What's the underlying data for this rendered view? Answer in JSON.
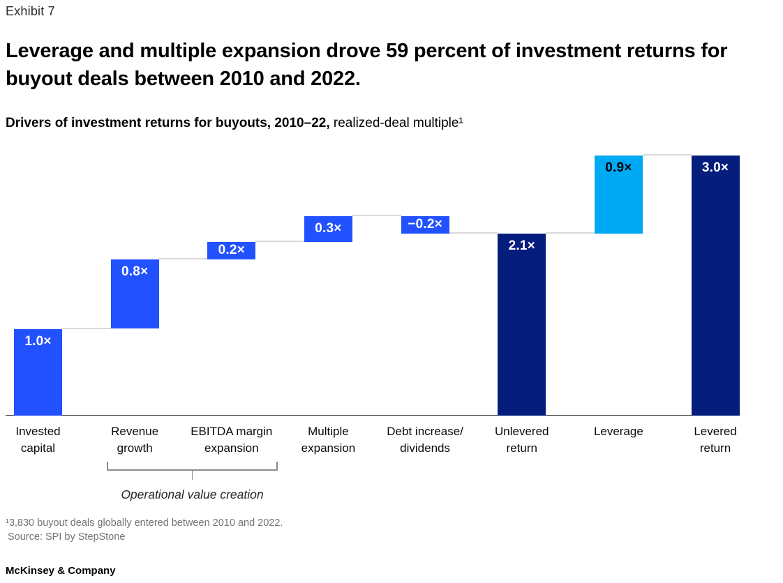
{
  "exhibit_label": "Exhibit 7",
  "title": "Leverage and multiple expansion drove 59 percent of investment returns for buyout deals between 2010 and 2022.",
  "subtitle": {
    "bold": "Drivers of investment returns for buyouts, 2010–22,",
    "regular": " realized-deal multiple¹"
  },
  "chart_data": {
    "type": "bar",
    "subtype": "waterfall",
    "title": "Drivers of investment returns for buyouts, 2010–22, realized-deal multiple",
    "xlabel": "",
    "ylabel": "realized-deal multiple (×)",
    "ylim": [
      0,
      3.1
    ],
    "gridlines": false,
    "legend": "none",
    "categories": [
      "Invested capital",
      "Revenue growth",
      "EBITDA margin expansion",
      "Multiple expansion",
      "Debt increase/dividends",
      "Unlevered return",
      "Leverage",
      "Levered return"
    ],
    "values": [
      1.0,
      0.8,
      0.2,
      0.3,
      -0.2,
      2.1,
      0.9,
      3.0
    ],
    "bars": [
      {
        "category": "Invested capital",
        "label_lines": [
          "Invested",
          "capital"
        ],
        "value": 1.0,
        "display": "1.0×",
        "kind": "base",
        "color_key": "blue"
      },
      {
        "category": "Revenue growth",
        "label_lines": [
          "Revenue",
          "growth"
        ],
        "value": 0.8,
        "display": "0.8×",
        "kind": "increase",
        "color_key": "blue"
      },
      {
        "category": "EBITDA margin expansion",
        "label_lines": [
          "EBITDA margin",
          "expansion"
        ],
        "value": 0.2,
        "display": "0.2×",
        "kind": "increase",
        "color_key": "blue"
      },
      {
        "category": "Multiple expansion",
        "label_lines": [
          "Multiple",
          "expansion"
        ],
        "value": 0.3,
        "display": "0.3×",
        "kind": "increase",
        "color_key": "blue"
      },
      {
        "category": "Debt increase/dividends",
        "label_lines": [
          "Debt increase/",
          "dividends"
        ],
        "value": -0.2,
        "display": "−0.2×",
        "kind": "decrease",
        "color_key": "blue"
      },
      {
        "category": "Unlevered return",
        "label_lines": [
          "Unlevered",
          "return"
        ],
        "value": 2.1,
        "display": "2.1×",
        "kind": "subtotal",
        "color_key": "navy"
      },
      {
        "category": "Leverage",
        "label_lines": [
          "Leverage"
        ],
        "value": 0.9,
        "display": "0.9×",
        "kind": "increase",
        "color_key": "cyan"
      },
      {
        "category": "Levered return",
        "label_lines": [
          "Levered",
          "return"
        ],
        "value": 3.0,
        "display": "3.0×",
        "kind": "total",
        "color_key": "navy"
      }
    ],
    "bracket": {
      "label": "Operational value creation",
      "from_category": "Revenue growth",
      "to_category": "EBITDA margin expansion"
    },
    "colors": {
      "blue": "#2251FF",
      "navy": "#051E7D",
      "cyan": "#00A9F4",
      "connector": "#D9D9D9",
      "axis": "#3C3C3C"
    }
  },
  "footnotes": [
    "¹3,830 buyout deals globally entered between 2010 and 2022.",
    "Source: SPI by StepStone"
  ],
  "logo": "McKinsey & Company"
}
